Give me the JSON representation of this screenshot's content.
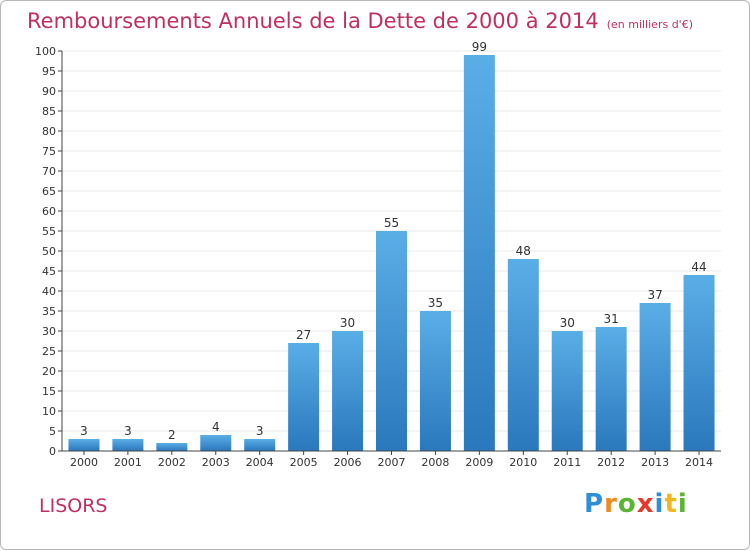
{
  "header": {
    "title": "Remboursements Annuels de la Dette de 2000 à 2014",
    "subtitle": "(en milliers d'€)"
  },
  "footer": {
    "town": "LISORS",
    "logo": [
      "P",
      "r",
      "o",
      "x",
      "i",
      "t",
      "i"
    ]
  },
  "colors": {
    "bar_top": "#5aaee6",
    "bar_bottom": "#2a78bd",
    "title": "#c0305e",
    "grid": "#e8e8e8"
  },
  "chart_data": {
    "type": "bar",
    "title": "Remboursements Annuels de la Dette de 2000 à 2014 (en milliers d'€)",
    "xlabel": "",
    "ylabel": "",
    "categories": [
      "2000",
      "2001",
      "2002",
      "2003",
      "2004",
      "2005",
      "2006",
      "2007",
      "2008",
      "2009",
      "2010",
      "2011",
      "2012",
      "2013",
      "2014"
    ],
    "values": [
      3,
      3,
      2,
      4,
      3,
      27,
      30,
      55,
      35,
      99,
      48,
      30,
      31,
      37,
      44
    ],
    "ylim": [
      0,
      100
    ],
    "ytick_step": 5,
    "grid": true
  }
}
